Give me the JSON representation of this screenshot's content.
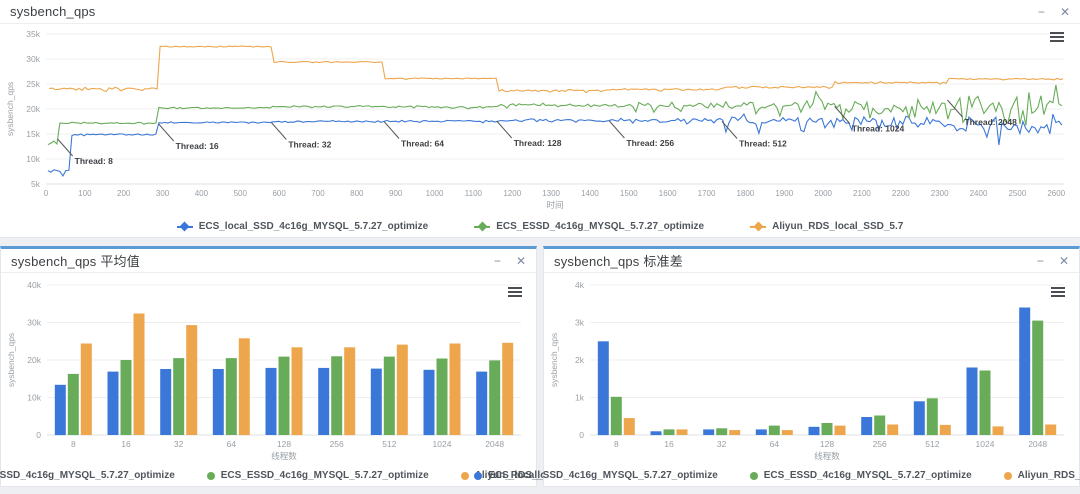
{
  "colors": {
    "blue": "#3b77d8",
    "green": "#68ac59",
    "orange": "#eda64c",
    "panel_accent": "#5b9bd5",
    "grid": "#efefef",
    "axis_text": "#9aa0a6"
  },
  "window_controls": {
    "minimize": "−",
    "close": "✕"
  },
  "chart_data": [
    {
      "type": "line",
      "title": "sysbench_qps",
      "xlabel": "时间",
      "ylabel": "sysbench_qps",
      "xlim": [
        0,
        2620
      ],
      "ylim": [
        5000,
        35000
      ],
      "x_tick_step": 100,
      "x_tick_max": 2600,
      "y_tick_step": 5000,
      "grid": "horizontal",
      "legend_position": "bottom",
      "annotations": [
        {
          "label": "Thread: 8",
          "x": 30,
          "y": 14000
        },
        {
          "label": "Thread: 16",
          "x": 290,
          "y": 17000
        },
        {
          "label": "Thread: 32",
          "x": 580,
          "y": 17300
        },
        {
          "label": "Thread: 64",
          "x": 870,
          "y": 17500
        },
        {
          "label": "Thread: 128",
          "x": 1160,
          "y": 17600
        },
        {
          "label": "Thread: 256",
          "x": 1450,
          "y": 17600
        },
        {
          "label": "Thread: 512",
          "x": 1740,
          "y": 17500
        },
        {
          "label": "Thread: 1024",
          "x": 2030,
          "y": 20500
        },
        {
          "label": "Thread: 2048",
          "x": 2320,
          "y": 21800
        }
      ],
      "series": [
        {
          "name": "ECS_local_SSD_4c16g_MYSQL_5.7.27_optimize",
          "color_key": "blue",
          "segments": [
            {
              "x0": 5,
              "x1": 60,
              "level": 7600,
              "noise": 1000
            },
            {
              "x0": 60,
              "x1": 290,
              "level": 14900,
              "noise": 400
            },
            {
              "x0": 290,
              "x1": 580,
              "level": 17300,
              "noise": 300
            },
            {
              "x0": 580,
              "x1": 870,
              "level": 17500,
              "noise": 350
            },
            {
              "x0": 870,
              "x1": 1160,
              "level": 17600,
              "noise": 450
            },
            {
              "x0": 1160,
              "x1": 1450,
              "level": 17700,
              "noise": 600
            },
            {
              "x0": 1450,
              "x1": 1740,
              "level": 17700,
              "noise": 900
            },
            {
              "x0": 1740,
              "x1": 2030,
              "level": 17600,
              "noise": 1600
            },
            {
              "x0": 2030,
              "x1": 2320,
              "level": 17500,
              "noise": 2300
            },
            {
              "x0": 2320,
              "x1": 2620,
              "level": 17200,
              "noise": 3800
            }
          ]
        },
        {
          "name": "Aliyun_RDS_local_SSD_5.7",
          "color_key": "orange",
          "segments": [
            {
              "x0": 8,
              "x1": 290,
              "level": 24000,
              "noise": 700
            },
            {
              "x0": 290,
              "x1": 580,
              "level": 32500,
              "noise": 300
            },
            {
              "x0": 580,
              "x1": 870,
              "level": 29400,
              "noise": 250
            },
            {
              "x0": 870,
              "x1": 1160,
              "level": 26100,
              "noise": 250
            },
            {
              "x0": 1160,
              "x1": 1450,
              "level": 23700,
              "noise": 450
            },
            {
              "x0": 1450,
              "x1": 1740,
              "level": 23900,
              "noise": 450
            },
            {
              "x0": 1740,
              "x1": 2030,
              "level": 24400,
              "noise": 450
            },
            {
              "x0": 2030,
              "x1": 2320,
              "level": 25300,
              "noise": 400
            },
            {
              "x0": 2320,
              "x1": 2620,
              "level": 26000,
              "noise": 350
            }
          ]
        },
        {
          "name": "ECS_ESSD_4c16g_MYSQL_5.7.27_optimize",
          "color_key": "green",
          "segments": [
            {
              "x0": 5,
              "x1": 35,
              "level": 13300,
              "noise": 900
            },
            {
              "x0": 35,
              "x1": 290,
              "level": 17200,
              "noise": 350
            },
            {
              "x0": 290,
              "x1": 580,
              "level": 20200,
              "noise": 350
            },
            {
              "x0": 580,
              "x1": 870,
              "level": 20500,
              "noise": 450
            },
            {
              "x0": 870,
              "x1": 1160,
              "level": 20400,
              "noise": 550
            },
            {
              "x0": 1160,
              "x1": 1450,
              "level": 20800,
              "noise": 750
            },
            {
              "x0": 1450,
              "x1": 1740,
              "level": 20800,
              "noise": 1100
            },
            {
              "x0": 1740,
              "x1": 2030,
              "level": 20900,
              "noise": 2000
            },
            {
              "x0": 2030,
              "x1": 2320,
              "level": 20700,
              "noise": 2600
            },
            {
              "x0": 2320,
              "x1": 2620,
              "level": 20800,
              "noise": 3800
            }
          ]
        }
      ],
      "legend_order": [
        0,
        2,
        1
      ]
    },
    {
      "type": "bar",
      "title": "sysbench_qps 平均值",
      "xlabel": "线程数",
      "ylabel": "sysbench_qps",
      "categories": [
        "8",
        "16",
        "32",
        "64",
        "128",
        "256",
        "512",
        "1024",
        "2048"
      ],
      "ylim": [
        0,
        40000
      ],
      "y_tick_step": 10000,
      "grid": "horizontal",
      "legend_position": "bottom",
      "series": [
        {
          "name": "ECS_local_SSD_4c16g_MYSQL_5.7.27_optimize",
          "color_key": "blue",
          "values": [
            13400,
            16900,
            17600,
            17600,
            17900,
            17900,
            17700,
            17400,
            16900
          ]
        },
        {
          "name": "ECS_ESSD_4c16g_MYSQL_5.7.27_optimize",
          "color_key": "green",
          "values": [
            16300,
            20000,
            20500,
            20500,
            20900,
            21000,
            20900,
            20400,
            19900
          ]
        },
        {
          "name": "Aliyun_RDS_local_SSD_5.7",
          "color_key": "orange",
          "values": [
            24400,
            32400,
            29300,
            25800,
            23400,
            23400,
            24100,
            24400,
            24600
          ]
        }
      ]
    },
    {
      "type": "bar",
      "title": "sysbench_qps 标准差",
      "xlabel": "线程数",
      "ylabel": "sysbench_qps",
      "categories": [
        "8",
        "16",
        "32",
        "64",
        "128",
        "256",
        "512",
        "1024",
        "2048"
      ],
      "ylim": [
        0,
        4000
      ],
      "y_tick_step": 1000,
      "grid": "horizontal",
      "legend_position": "bottom",
      "series": [
        {
          "name": "ECS_local_SSD_4c16g_MYSQL_5.7.27_optimize",
          "color_key": "blue",
          "values": [
            2500,
            100,
            150,
            150,
            220,
            480,
            900,
            1800,
            3400
          ]
        },
        {
          "name": "ECS_ESSD_4c16g_MYSQL_5.7.27_optimize",
          "color_key": "green",
          "values": [
            1020,
            150,
            180,
            250,
            320,
            520,
            980,
            1720,
            3050
          ]
        },
        {
          "name": "Aliyun_RDS_local_SSD_5.7",
          "color_key": "orange",
          "values": [
            450,
            150,
            130,
            130,
            250,
            280,
            270,
            230,
            280
          ]
        }
      ]
    }
  ]
}
